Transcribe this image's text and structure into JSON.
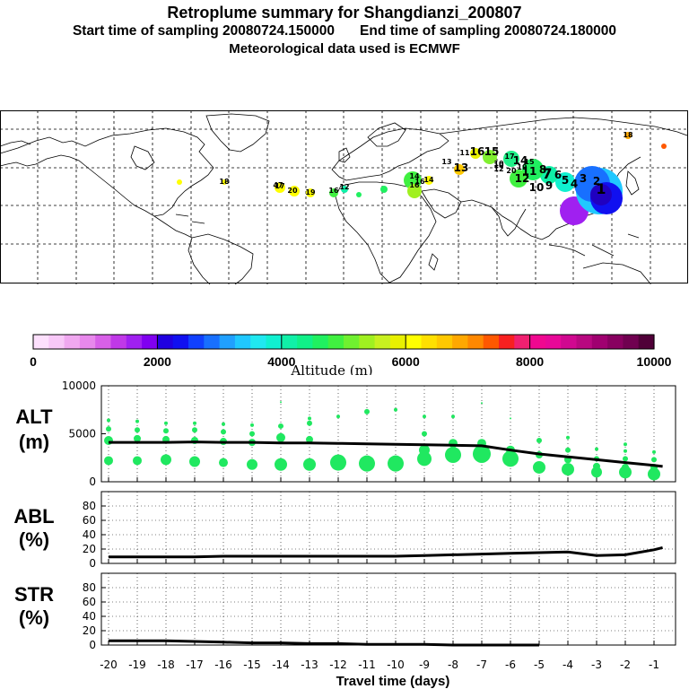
{
  "title": {
    "main": "Retroplume summary for Shangdianzi_200807",
    "start": "Start time of sampling 20080724.150000",
    "end": "End time of sampling 20080724.180000",
    "met": "Meteorological data used is ECMWF"
  },
  "colorbar": {
    "label": "Altitude (m)",
    "tick_labels": [
      "0",
      "2000",
      "4000",
      "6000",
      "8000",
      "10000"
    ],
    "colors": [
      "#fde0fd",
      "#f8c8f8",
      "#f0a8f0",
      "#e888ec",
      "#d860e8",
      "#c038e8",
      "#a020f0",
      "#8000f0",
      "#2000e0",
      "#1010f0",
      "#1040ff",
      "#1870ff",
      "#20a0ff",
      "#20c8ff",
      "#20e8f0",
      "#10f0d0",
      "#10f0a8",
      "#10f088",
      "#20f060",
      "#40f040",
      "#70f030",
      "#a0f020",
      "#c8f020",
      "#e8f000",
      "#ffff00",
      "#ffe000",
      "#ffc800",
      "#ffa800",
      "#ff8800",
      "#ff5800",
      "#f82020",
      "#f02070",
      "#f00890",
      "#e80898",
      "#d00890",
      "#b80880",
      "#a00070",
      "#880060",
      "#700050",
      "#500038"
    ]
  },
  "map": {
    "labels": [
      {
        "t": "1",
        "c": "#2020c0"
      },
      {
        "t": "2",
        "c": "#10a0ff"
      },
      {
        "t": "3",
        "c": "#10d0f0"
      },
      {
        "t": "4",
        "c": "#10e8c0"
      },
      {
        "t": "5",
        "c": "#10f0a0"
      },
      {
        "t": "6",
        "c": "#10f0a0"
      },
      {
        "t": "7",
        "c": "#20f080"
      },
      {
        "t": "8",
        "c": "#20f080"
      },
      {
        "t": "9",
        "c": "#20f060"
      },
      {
        "t": "10",
        "c": "#30f050"
      },
      {
        "t": "11",
        "c": "#30f040"
      },
      {
        "t": "12",
        "c": "#40f040"
      },
      {
        "t": "13",
        "c": "#ffd000"
      },
      {
        "t": "14",
        "c": "#60f030"
      },
      {
        "t": "15",
        "c": "#80f020"
      },
      {
        "t": "16",
        "c": "#90f020"
      },
      {
        "t": "17",
        "c": "#ffff00"
      },
      {
        "t": "18",
        "c": "#ffe000"
      },
      {
        "t": "19",
        "c": "#ffc800"
      },
      {
        "t": "20",
        "c": "#ffff00"
      },
      {
        "t": "14",
        "c": "#ffff00"
      },
      {
        "t": "16",
        "c": "#ffff00"
      },
      {
        "t": "13",
        "c": "#ffc000"
      },
      {
        "t": "11",
        "c": "#ff8800"
      },
      {
        "t": "17",
        "c": "#e8f000"
      },
      {
        "t": "15",
        "c": "#20f060"
      },
      {
        "t": "19",
        "c": "#20f060"
      },
      {
        "t": "20",
        "c": "#ffff00"
      },
      {
        "t": "16",
        "c": "#ffff00"
      },
      {
        "t": "47",
        "c": "#ffff00"
      },
      {
        "t": "10",
        "c": "#ff6000"
      },
      {
        "t": "12",
        "c": "#ff4000"
      },
      {
        "t": "10",
        "c": "#ff2000"
      },
      {
        "t": "18",
        "c": "#ff8800"
      },
      {
        "t": "16",
        "c": "#40f050"
      },
      {
        "t": "12",
        "c": "#40f050"
      },
      {
        "t": "14",
        "c": "#40f050"
      }
    ]
  },
  "chart_data": [
    {
      "type": "scatter",
      "panel": "ALT",
      "ylabel": "ALT",
      "yunit": "(m)",
      "ylim": [
        0,
        10000
      ],
      "yticks": [
        "0",
        "5000",
        "10000"
      ],
      "xlim": [
        -20.25,
        -0.25
      ],
      "xlabel": "Travel time (days)",
      "xticks": [
        "-20",
        "-19",
        "-18",
        "-17",
        "-16",
        "-15",
        "-14",
        "-13",
        "-12",
        "-11",
        "-10",
        "-9",
        "-8",
        "-7",
        "-6",
        "-5",
        "-4",
        "-3",
        "-2",
        "-1"
      ],
      "mean_line": {
        "x": [
          -20,
          -19,
          -18,
          -17,
          -16,
          -15,
          -14,
          -13,
          -12,
          -11,
          -10,
          -9,
          -8,
          -7,
          -6,
          -5,
          -4,
          -3,
          -2,
          -1,
          -0.7
        ],
        "y": [
          4100,
          4100,
          4100,
          4150,
          4100,
          4100,
          4050,
          4050,
          4000,
          3950,
          3900,
          3850,
          3800,
          3750,
          3300,
          2900,
          2600,
          2300,
          2000,
          1700,
          1600
        ]
      },
      "dot_series": [
        {
          "x": -20,
          "y": [
            2200,
            4300,
            5500,
            6400
          ],
          "r": [
            5,
            5,
            3,
            2
          ]
        },
        {
          "x": -19,
          "y": [
            2200,
            4500,
            5400,
            6300
          ],
          "r": [
            5,
            4,
            3,
            2
          ]
        },
        {
          "x": -18,
          "y": [
            2300,
            4400,
            5300,
            6100
          ],
          "r": [
            6,
            4,
            3,
            2
          ]
        },
        {
          "x": -17,
          "y": [
            2100,
            4300,
            5400,
            6100
          ],
          "r": [
            6,
            4,
            3,
            2
          ]
        },
        {
          "x": -16,
          "y": [
            2000,
            4200,
            5200,
            6000
          ],
          "r": [
            5,
            4,
            3,
            2
          ]
        },
        {
          "x": -15,
          "y": [
            1800,
            4100,
            5000,
            5900
          ],
          "r": [
            6,
            4,
            3,
            2
          ]
        },
        {
          "x": -14,
          "y": [
            1800,
            4600,
            5800,
            8300
          ],
          "r": [
            7,
            5,
            3,
            1
          ]
        },
        {
          "x": -13,
          "y": [
            1800,
            4400,
            6100,
            6600
          ],
          "r": [
            7,
            4,
            3,
            2
          ]
        },
        {
          "x": -12,
          "y": [
            2000,
            6800
          ],
          "r": [
            9,
            2
          ]
        },
        {
          "x": -11,
          "y": [
            1900,
            7300
          ],
          "r": [
            9,
            3
          ]
        },
        {
          "x": -10,
          "y": [
            1900,
            7500
          ],
          "r": [
            9,
            2
          ]
        },
        {
          "x": -9,
          "y": [
            2400,
            3300,
            5000,
            6800
          ],
          "r": [
            8,
            6,
            3,
            2
          ]
        },
        {
          "x": -8,
          "y": [
            2800,
            4000,
            6800
          ],
          "r": [
            9,
            5,
            2
          ]
        },
        {
          "x": -7,
          "y": [
            2900,
            4000,
            8200
          ],
          "r": [
            10,
            5,
            1
          ]
        },
        {
          "x": -6,
          "y": [
            2400,
            3300,
            6600
          ],
          "r": [
            9,
            5,
            1
          ]
        },
        {
          "x": -5,
          "y": [
            1500,
            2800,
            4300
          ],
          "r": [
            7,
            4,
            3
          ]
        },
        {
          "x": -4,
          "y": [
            1300,
            2300,
            3300,
            4600
          ],
          "r": [
            7,
            4,
            3,
            2
          ]
        },
        {
          "x": -3,
          "y": [
            1000,
            1600,
            2400,
            3400
          ],
          "r": [
            6,
            4,
            3,
            2
          ]
        },
        {
          "x": -2,
          "y": [
            1000,
            1500,
            2400,
            3200,
            3900
          ],
          "r": [
            7,
            4,
            3,
            2,
            2
          ]
        },
        {
          "x": -1,
          "y": [
            800,
            1500,
            2300,
            3100
          ],
          "r": [
            7,
            4,
            3,
            2
          ]
        }
      ]
    },
    {
      "type": "line",
      "panel": "ABL",
      "ylabel": "ABL",
      "yunit": "(%)",
      "ylim": [
        0,
        100
      ],
      "yticks": [
        "0",
        "20",
        "40",
        "60",
        "80"
      ],
      "x": [
        -20,
        -19,
        -18,
        -17,
        -16,
        -15,
        -14,
        -13,
        -12,
        -11,
        -10,
        -9,
        -8,
        -7,
        -6,
        -5,
        -4,
        -3,
        -2,
        -1,
        -0.7
      ],
      "y": [
        9,
        9,
        9,
        9,
        10,
        10,
        10,
        10,
        10,
        10,
        10,
        11,
        12,
        13,
        14,
        15,
        16,
        11,
        12,
        19,
        22
      ]
    },
    {
      "type": "line",
      "panel": "STR",
      "ylabel": "STR",
      "yunit": "(%)",
      "ylim": [
        0,
        100
      ],
      "yticks": [
        "0",
        "20",
        "40",
        "60",
        "80"
      ],
      "x": [
        -20,
        -19,
        -18,
        -17,
        -16,
        -15,
        -14,
        -13,
        -12,
        -11,
        -10,
        -9,
        -8,
        -7,
        -6,
        -5
      ],
      "y": [
        6,
        6,
        6,
        5,
        4,
        3,
        3,
        2,
        2,
        1,
        1,
        1,
        0,
        0,
        0,
        0
      ]
    }
  ]
}
